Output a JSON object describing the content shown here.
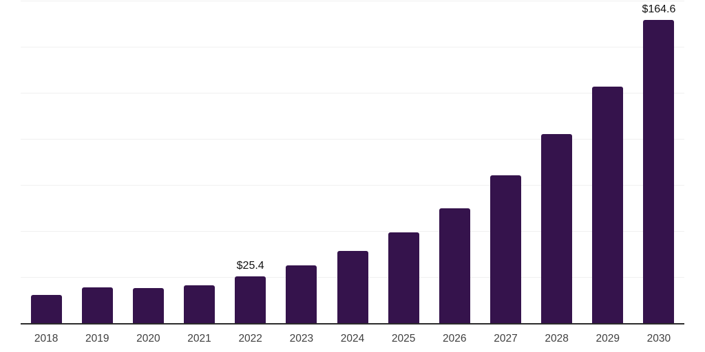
{
  "chart_data": {
    "type": "bar",
    "title": "",
    "xlabel": "",
    "ylabel": "",
    "categories": [
      "2018",
      "2019",
      "2020",
      "2021",
      "2022",
      "2023",
      "2024",
      "2025",
      "2026",
      "2027",
      "2028",
      "2029",
      "2030"
    ],
    "values": [
      15.3,
      19.4,
      18.9,
      20.5,
      25.4,
      31.3,
      39.3,
      49.4,
      62.4,
      80.2,
      102.5,
      128.3,
      164.6
    ],
    "data_labels": {
      "2022": "$25.4",
      "2030": "$164.6"
    },
    "ylim": [
      0,
      175
    ],
    "gridline_step": 25,
    "grid": "horizontal-light",
    "y_tick_labels_visible": false,
    "legend_position": "none"
  },
  "colors": {
    "bar": "#35134C",
    "axis": "#2b2b2b",
    "gridline": "#f0f0f0",
    "tick_label": "#3f3f3f",
    "value_label": "#111111",
    "background": "#ffffff"
  }
}
